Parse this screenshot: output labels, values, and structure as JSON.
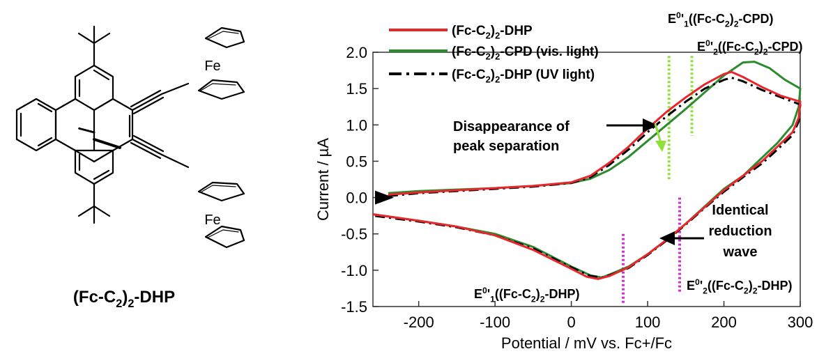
{
  "molecule": {
    "name": "(Fc-C2)2-DHP",
    "atoms": [
      "Fe",
      "Fe"
    ]
  },
  "chart_data": {
    "type": "line",
    "xlabel": "Potential / mV vs. Fc+/Fc",
    "ylabel": "Current / µA",
    "xlim": [
      -260,
      300
    ],
    "ylim": [
      -1.5,
      2.0
    ],
    "x_ticks": [
      -200,
      -100,
      0,
      100,
      200,
      300
    ],
    "y_ticks": [
      -1.5,
      -1.0,
      -0.5,
      0.0,
      0.5,
      1.0,
      1.5,
      2.0
    ],
    "legend_position": "top-left",
    "series": [
      {
        "name": "(Fc-C2)2-DHP",
        "color": "#e8262b",
        "dash": "solid",
        "forward": [
          [
            -240,
            0.04
          ],
          [
            -200,
            0.07
          ],
          [
            -150,
            0.1
          ],
          [
            -100,
            0.13
          ],
          [
            -50,
            0.16
          ],
          [
            0,
            0.21
          ],
          [
            25,
            0.3
          ],
          [
            50,
            0.48
          ],
          [
            75,
            0.7
          ],
          [
            100,
            0.95
          ],
          [
            125,
            1.18
          ],
          [
            150,
            1.38
          ],
          [
            175,
            1.56
          ],
          [
            200,
            1.7
          ],
          [
            210,
            1.73
          ],
          [
            225,
            1.66
          ],
          [
            250,
            1.52
          ],
          [
            275,
            1.4
          ],
          [
            300,
            1.32
          ]
        ],
        "reverse": [
          [
            300,
            1.32
          ],
          [
            298,
            1.1
          ],
          [
            290,
            0.9
          ],
          [
            270,
            0.7
          ],
          [
            250,
            0.5
          ],
          [
            225,
            0.3
          ],
          [
            200,
            0.1
          ],
          [
            175,
            -0.13
          ],
          [
            150,
            -0.36
          ],
          [
            125,
            -0.58
          ],
          [
            100,
            -0.78
          ],
          [
            75,
            -0.96
          ],
          [
            50,
            -1.08
          ],
          [
            35,
            -1.12
          ],
          [
            20,
            -1.09
          ],
          [
            0,
            -0.98
          ],
          [
            -50,
            -0.72
          ],
          [
            -100,
            -0.52
          ],
          [
            -150,
            -0.4
          ],
          [
            -200,
            -0.32
          ],
          [
            -260,
            -0.23
          ]
        ]
      },
      {
        "name": "(Fc-C2)2-CPD (vis. light)",
        "color": "#2e8a2e",
        "dash": "solid",
        "forward": [
          [
            -240,
            0.06
          ],
          [
            -200,
            0.09
          ],
          [
            -150,
            0.11
          ],
          [
            -100,
            0.13
          ],
          [
            -50,
            0.16
          ],
          [
            0,
            0.2
          ],
          [
            25,
            0.26
          ],
          [
            50,
            0.38
          ],
          [
            75,
            0.56
          ],
          [
            100,
            0.78
          ],
          [
            125,
            1.0
          ],
          [
            150,
            1.22
          ],
          [
            175,
            1.45
          ],
          [
            200,
            1.68
          ],
          [
            225,
            1.86
          ],
          [
            240,
            1.87
          ],
          [
            260,
            1.78
          ],
          [
            280,
            1.62
          ],
          [
            300,
            1.5
          ]
        ],
        "reverse": [
          [
            300,
            1.5
          ],
          [
            298,
            1.25
          ],
          [
            290,
            1.0
          ],
          [
            270,
            0.75
          ],
          [
            250,
            0.55
          ],
          [
            225,
            0.3
          ],
          [
            200,
            0.12
          ],
          [
            175,
            -0.12
          ],
          [
            150,
            -0.36
          ],
          [
            125,
            -0.58
          ],
          [
            100,
            -0.78
          ],
          [
            75,
            -0.95
          ],
          [
            50,
            -1.06
          ],
          [
            40,
            -1.1
          ],
          [
            25,
            -1.07
          ],
          [
            0,
            -0.95
          ],
          [
            -50,
            -0.68
          ],
          [
            -100,
            -0.5
          ],
          [
            -150,
            -0.4
          ],
          [
            -200,
            -0.32
          ],
          [
            -260,
            -0.23
          ]
        ]
      },
      {
        "name": "(Fc-C2)2-DHP (UV light)",
        "color": "#000000",
        "dash": "dashdot",
        "forward": [
          [
            -240,
            0.02
          ],
          [
            -200,
            0.06
          ],
          [
            -150,
            0.09
          ],
          [
            -100,
            0.12
          ],
          [
            -50,
            0.15
          ],
          [
            0,
            0.2
          ],
          [
            25,
            0.28
          ],
          [
            50,
            0.45
          ],
          [
            75,
            0.66
          ],
          [
            100,
            0.9
          ],
          [
            125,
            1.12
          ],
          [
            150,
            1.32
          ],
          [
            175,
            1.5
          ],
          [
            200,
            1.62
          ],
          [
            210,
            1.65
          ],
          [
            225,
            1.6
          ],
          [
            250,
            1.48
          ],
          [
            275,
            1.38
          ],
          [
            300,
            1.28
          ]
        ],
        "reverse": [
          [
            300,
            1.28
          ],
          [
            298,
            1.05
          ],
          [
            290,
            0.86
          ],
          [
            270,
            0.66
          ],
          [
            250,
            0.47
          ],
          [
            225,
            0.28
          ],
          [
            200,
            0.08
          ],
          [
            175,
            -0.14
          ],
          [
            150,
            -0.37
          ],
          [
            125,
            -0.59
          ],
          [
            100,
            -0.79
          ],
          [
            75,
            -0.97
          ],
          [
            50,
            -1.07
          ],
          [
            40,
            -1.1
          ],
          [
            25,
            -1.08
          ],
          [
            0,
            -0.96
          ],
          [
            -50,
            -0.7
          ],
          [
            -100,
            -0.52
          ],
          [
            -150,
            -0.41
          ],
          [
            -200,
            -0.33
          ],
          [
            -260,
            -0.25
          ]
        ]
      }
    ],
    "markers": [
      {
        "x": 128,
        "color": "#8fe03a",
        "label": "E0'1((Fc-C2)2-CPD)"
      },
      {
        "x": 158,
        "color": "#8fe03a",
        "label": "E0'2((Fc-C2)2-CPD)"
      },
      {
        "x": 68,
        "color": "#cc33cc",
        "label": "E0'1((Fc-C2)2-DHP)"
      },
      {
        "x": 142,
        "color": "#cc33cc",
        "label": "E0'2((Fc-C2)2-DHP)"
      }
    ],
    "annotations": {
      "peak": [
        "Disappearance of",
        "peak separation"
      ],
      "reduction": [
        "Identical",
        "reduction",
        "wave"
      ]
    }
  }
}
